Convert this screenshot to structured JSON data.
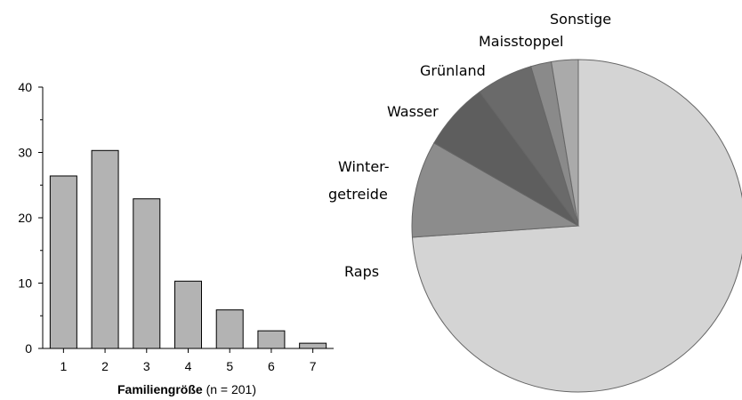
{
  "chart_data": [
    {
      "type": "bar",
      "categories": [
        "1",
        "2",
        "3",
        "4",
        "5",
        "6",
        "7"
      ],
      "values": [
        26.4,
        30.3,
        22.9,
        10.3,
        5.9,
        2.7,
        0.8
      ],
      "color": "#b3b3b3",
      "ylim": [
        0,
        40
      ],
      "yticks": [
        0,
        10,
        20,
        30,
        40
      ],
      "xlabel": "Familiengröße",
      "xlabel_suffix": "(n = 201)"
    },
    {
      "type": "pie",
      "categories": [
        "Raps",
        "Winter-\ngetreide",
        "Wasser",
        "Grünland",
        "Maisstoppel",
        "Sonstige"
      ],
      "values": [
        73.9,
        9.4,
        6.6,
        5.5,
        2.0,
        2.6
      ],
      "colors": [
        "#d4d4d4",
        "#8c8c8c",
        "#5e5e5e",
        "#6a6a6a",
        "#8a8a8a",
        "#aaaaaa"
      ]
    }
  ]
}
